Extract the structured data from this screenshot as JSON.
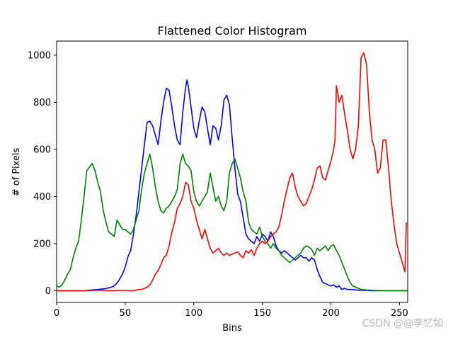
{
  "chart_data": {
    "type": "line",
    "title": "Flattened Color Histogram",
    "xlabel": "Bins",
    "ylabel": "# of Pixels",
    "xlim": [
      0,
      256
    ],
    "ylim": [
      -50,
      1060
    ],
    "xticks": [
      0,
      50,
      100,
      150,
      200,
      250
    ],
    "yticks": [
      0,
      200,
      400,
      600,
      800,
      1000
    ],
    "grid": false,
    "series": [
      {
        "color": "#0000ff",
        "points": [
          [
            0,
            0
          ],
          [
            10,
            0
          ],
          [
            20,
            0
          ],
          [
            25,
            3
          ],
          [
            30,
            5
          ],
          [
            35,
            8
          ],
          [
            40,
            15
          ],
          [
            42,
            20
          ],
          [
            45,
            40
          ],
          [
            48,
            70
          ],
          [
            50,
            100
          ],
          [
            52,
            145
          ],
          [
            54,
            170
          ],
          [
            56,
            240
          ],
          [
            58,
            320
          ],
          [
            60,
            420
          ],
          [
            62,
            520
          ],
          [
            64,
            620
          ],
          [
            66,
            715
          ],
          [
            68,
            720
          ],
          [
            70,
            700
          ],
          [
            72,
            660
          ],
          [
            74,
            620
          ],
          [
            76,
            720
          ],
          [
            78,
            800
          ],
          [
            80,
            860
          ],
          [
            82,
            850
          ],
          [
            84,
            780
          ],
          [
            86,
            700
          ],
          [
            88,
            640
          ],
          [
            90,
            620
          ],
          [
            92,
            760
          ],
          [
            94,
            860
          ],
          [
            95,
            895
          ],
          [
            96,
            870
          ],
          [
            98,
            780
          ],
          [
            100,
            690
          ],
          [
            102,
            650
          ],
          [
            104,
            720
          ],
          [
            106,
            780
          ],
          [
            108,
            760
          ],
          [
            110,
            690
          ],
          [
            112,
            620
          ],
          [
            114,
            700
          ],
          [
            116,
            690
          ],
          [
            118,
            640
          ],
          [
            120,
            700
          ],
          [
            122,
            810
          ],
          [
            124,
            830
          ],
          [
            126,
            790
          ],
          [
            128,
            650
          ],
          [
            130,
            520
          ],
          [
            132,
            410
          ],
          [
            134,
            380
          ],
          [
            136,
            310
          ],
          [
            138,
            240
          ],
          [
            140,
            220
          ],
          [
            142,
            210
          ],
          [
            144,
            200
          ],
          [
            146,
            230
          ],
          [
            148,
            210
          ],
          [
            150,
            240
          ],
          [
            152,
            230
          ],
          [
            154,
            210
          ],
          [
            156,
            250
          ],
          [
            158,
            230
          ],
          [
            160,
            190
          ],
          [
            162,
            170
          ],
          [
            164,
            160
          ],
          [
            166,
            170
          ],
          [
            168,
            160
          ],
          [
            170,
            150
          ],
          [
            172,
            140
          ],
          [
            174,
            130
          ],
          [
            176,
            140
          ],
          [
            178,
            150
          ],
          [
            180,
            140
          ],
          [
            182,
            140
          ],
          [
            184,
            125
          ],
          [
            186,
            140
          ],
          [
            188,
            130
          ],
          [
            190,
            90
          ],
          [
            192,
            60
          ],
          [
            194,
            35
          ],
          [
            196,
            30
          ],
          [
            198,
            25
          ],
          [
            200,
            20
          ],
          [
            202,
            25
          ],
          [
            204,
            15
          ],
          [
            206,
            20
          ],
          [
            208,
            5
          ],
          [
            210,
            10
          ],
          [
            212,
            5
          ],
          [
            215,
            5
          ],
          [
            220,
            2
          ],
          [
            230,
            0
          ],
          [
            240,
            0
          ],
          [
            256,
            0
          ]
        ]
      },
      {
        "color": "#008000",
        "points": [
          [
            0,
            20
          ],
          [
            2,
            15
          ],
          [
            4,
            25
          ],
          [
            6,
            45
          ],
          [
            8,
            70
          ],
          [
            10,
            90
          ],
          [
            12,
            140
          ],
          [
            14,
            180
          ],
          [
            16,
            210
          ],
          [
            18,
            300
          ],
          [
            20,
            400
          ],
          [
            22,
            510
          ],
          [
            24,
            525
          ],
          [
            26,
            540
          ],
          [
            28,
            510
          ],
          [
            30,
            460
          ],
          [
            32,
            420
          ],
          [
            34,
            340
          ],
          [
            36,
            290
          ],
          [
            38,
            250
          ],
          [
            40,
            240
          ],
          [
            42,
            230
          ],
          [
            44,
            300
          ],
          [
            46,
            280
          ],
          [
            48,
            260
          ],
          [
            50,
            260
          ],
          [
            52,
            250
          ],
          [
            54,
            240
          ],
          [
            56,
            260
          ],
          [
            58,
            300
          ],
          [
            60,
            340
          ],
          [
            62,
            430
          ],
          [
            64,
            500
          ],
          [
            66,
            540
          ],
          [
            68,
            580
          ],
          [
            70,
            520
          ],
          [
            72,
            440
          ],
          [
            74,
            380
          ],
          [
            76,
            340
          ],
          [
            78,
            330
          ],
          [
            80,
            350
          ],
          [
            82,
            360
          ],
          [
            84,
            380
          ],
          [
            86,
            400
          ],
          [
            88,
            430
          ],
          [
            90,
            540
          ],
          [
            92,
            580
          ],
          [
            94,
            540
          ],
          [
            96,
            530
          ],
          [
            98,
            510
          ],
          [
            100,
            420
          ],
          [
            102,
            380
          ],
          [
            104,
            360
          ],
          [
            106,
            380
          ],
          [
            108,
            400
          ],
          [
            110,
            420
          ],
          [
            112,
            500
          ],
          [
            114,
            440
          ],
          [
            116,
            380
          ],
          [
            118,
            400
          ],
          [
            120,
            360
          ],
          [
            122,
            340
          ],
          [
            124,
            380
          ],
          [
            126,
            500
          ],
          [
            128,
            540
          ],
          [
            130,
            560
          ],
          [
            132,
            520
          ],
          [
            134,
            480
          ],
          [
            136,
            420
          ],
          [
            138,
            380
          ],
          [
            140,
            290
          ],
          [
            142,
            260
          ],
          [
            144,
            250
          ],
          [
            146,
            240
          ],
          [
            148,
            270
          ],
          [
            150,
            230
          ],
          [
            152,
            210
          ],
          [
            154,
            200
          ],
          [
            156,
            180
          ],
          [
            158,
            200
          ],
          [
            160,
            180
          ],
          [
            162,
            170
          ],
          [
            164,
            150
          ],
          [
            166,
            140
          ],
          [
            168,
            130
          ],
          [
            170,
            120
          ],
          [
            172,
            130
          ],
          [
            174,
            140
          ],
          [
            176,
            150
          ],
          [
            178,
            160
          ],
          [
            180,
            180
          ],
          [
            182,
            190
          ],
          [
            184,
            185
          ],
          [
            186,
            175
          ],
          [
            188,
            150
          ],
          [
            190,
            180
          ],
          [
            192,
            170
          ],
          [
            194,
            180
          ],
          [
            196,
            190
          ],
          [
            198,
            170
          ],
          [
            200,
            190
          ],
          [
            202,
            195
          ],
          [
            204,
            170
          ],
          [
            206,
            150
          ],
          [
            208,
            120
          ],
          [
            210,
            90
          ],
          [
            212,
            60
          ],
          [
            214,
            35
          ],
          [
            216,
            20
          ],
          [
            218,
            15
          ],
          [
            220,
            10
          ],
          [
            222,
            5
          ],
          [
            226,
            3
          ],
          [
            232,
            1
          ],
          [
            240,
            0
          ],
          [
            256,
            0
          ]
        ]
      },
      {
        "color": "#ff0000",
        "points": [
          [
            0,
            0
          ],
          [
            20,
            0
          ],
          [
            30,
            2
          ],
          [
            40,
            0
          ],
          [
            50,
            1
          ],
          [
            55,
            0
          ],
          [
            58,
            2
          ],
          [
            60,
            5
          ],
          [
            62,
            5
          ],
          [
            64,
            10
          ],
          [
            66,
            15
          ],
          [
            68,
            25
          ],
          [
            70,
            45
          ],
          [
            72,
            70
          ],
          [
            74,
            85
          ],
          [
            76,
            110
          ],
          [
            78,
            140
          ],
          [
            80,
            150
          ],
          [
            82,
            190
          ],
          [
            84,
            250
          ],
          [
            86,
            290
          ],
          [
            88,
            350
          ],
          [
            90,
            370
          ],
          [
            92,
            400
          ],
          [
            94,
            460
          ],
          [
            96,
            450
          ],
          [
            98,
            380
          ],
          [
            100,
            350
          ],
          [
            102,
            300
          ],
          [
            104,
            260
          ],
          [
            106,
            220
          ],
          [
            108,
            260
          ],
          [
            110,
            220
          ],
          [
            112,
            180
          ],
          [
            114,
            160
          ],
          [
            116,
            170
          ],
          [
            118,
            180
          ],
          [
            120,
            160
          ],
          [
            122,
            150
          ],
          [
            124,
            160
          ],
          [
            126,
            150
          ],
          [
            128,
            155
          ],
          [
            130,
            160
          ],
          [
            132,
            165
          ],
          [
            134,
            150
          ],
          [
            136,
            140
          ],
          [
            138,
            170
          ],
          [
            140,
            160
          ],
          [
            142,
            175
          ],
          [
            144,
            150
          ],
          [
            146,
            180
          ],
          [
            148,
            200
          ],
          [
            150,
            210
          ],
          [
            152,
            200
          ],
          [
            154,
            210
          ],
          [
            156,
            230
          ],
          [
            158,
            240
          ],
          [
            160,
            250
          ],
          [
            162,
            270
          ],
          [
            164,
            320
          ],
          [
            166,
            380
          ],
          [
            168,
            430
          ],
          [
            170,
            480
          ],
          [
            172,
            500
          ],
          [
            174,
            440
          ],
          [
            176,
            400
          ],
          [
            178,
            380
          ],
          [
            180,
            360
          ],
          [
            182,
            370
          ],
          [
            184,
            400
          ],
          [
            186,
            430
          ],
          [
            188,
            470
          ],
          [
            190,
            520
          ],
          [
            192,
            530
          ],
          [
            194,
            480
          ],
          [
            196,
            470
          ],
          [
            198,
            510
          ],
          [
            200,
            550
          ],
          [
            202,
            600
          ],
          [
            203,
            640
          ],
          [
            204,
            870
          ],
          [
            205,
            840
          ],
          [
            206,
            800
          ],
          [
            208,
            830
          ],
          [
            210,
            750
          ],
          [
            212,
            680
          ],
          [
            214,
            600
          ],
          [
            216,
            560
          ],
          [
            218,
            600
          ],
          [
            220,
            700
          ],
          [
            222,
            990
          ],
          [
            224,
            1010
          ],
          [
            226,
            960
          ],
          [
            228,
            760
          ],
          [
            230,
            640
          ],
          [
            232,
            600
          ],
          [
            234,
            500
          ],
          [
            236,
            520
          ],
          [
            238,
            640
          ],
          [
            240,
            640
          ],
          [
            242,
            520
          ],
          [
            244,
            380
          ],
          [
            246,
            280
          ],
          [
            248,
            200
          ],
          [
            250,
            160
          ],
          [
            252,
            120
          ],
          [
            254,
            80
          ],
          [
            255,
            290
          ]
        ]
      }
    ]
  },
  "watermark": "CSDN @@李忆如"
}
